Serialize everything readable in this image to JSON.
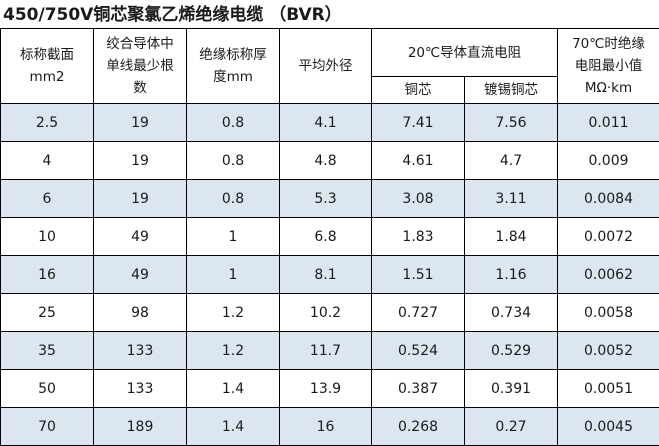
{
  "title": "450/750V铜芯聚氯乙烯绝缘电缆 （BVR）",
  "headers": {
    "col1": "标称截面\nmm2",
    "col2": "绞合导体中\n单线最少根\n数",
    "col3": "绝缘标称厚\n度mm",
    "col4": "平均外径",
    "group": "20℃导体直流电阻",
    "sub_copper": "铜芯",
    "sub_tinned": "镀锡铜芯",
    "col7": "70℃时绝缘\n电阻最小值\nMΩ·km"
  },
  "rows": [
    [
      "2.5",
      "19",
      "0.8",
      "4.1",
      "7.41",
      "7.56",
      "0.011"
    ],
    [
      "4",
      "19",
      "0.8",
      "4.8",
      "4.61",
      "4.7",
      "0.009"
    ],
    [
      "6",
      "19",
      "0.8",
      "5.3",
      "3.08",
      "3.11",
      "0.0084"
    ],
    [
      "10",
      "49",
      "1",
      "6.8",
      "1.83",
      "1.84",
      "0.0072"
    ],
    [
      "16",
      "49",
      "1",
      "8.1",
      "1.51",
      "1.16",
      "0.0062"
    ],
    [
      "25",
      "98",
      "1.2",
      "10.2",
      "0.727",
      "0.734",
      "0.0058"
    ],
    [
      "35",
      "133",
      "1.2",
      "11.7",
      "0.524",
      "0.529",
      "0.0052"
    ],
    [
      "50",
      "133",
      "1.4",
      "13.9",
      "0.387",
      "0.391",
      "0.0051"
    ],
    [
      "70",
      "189",
      "1.4",
      "16",
      "0.268",
      "0.27",
      "0.0045"
    ]
  ],
  "colors": {
    "stripe": "#dce6f1",
    "border": "#000000"
  }
}
